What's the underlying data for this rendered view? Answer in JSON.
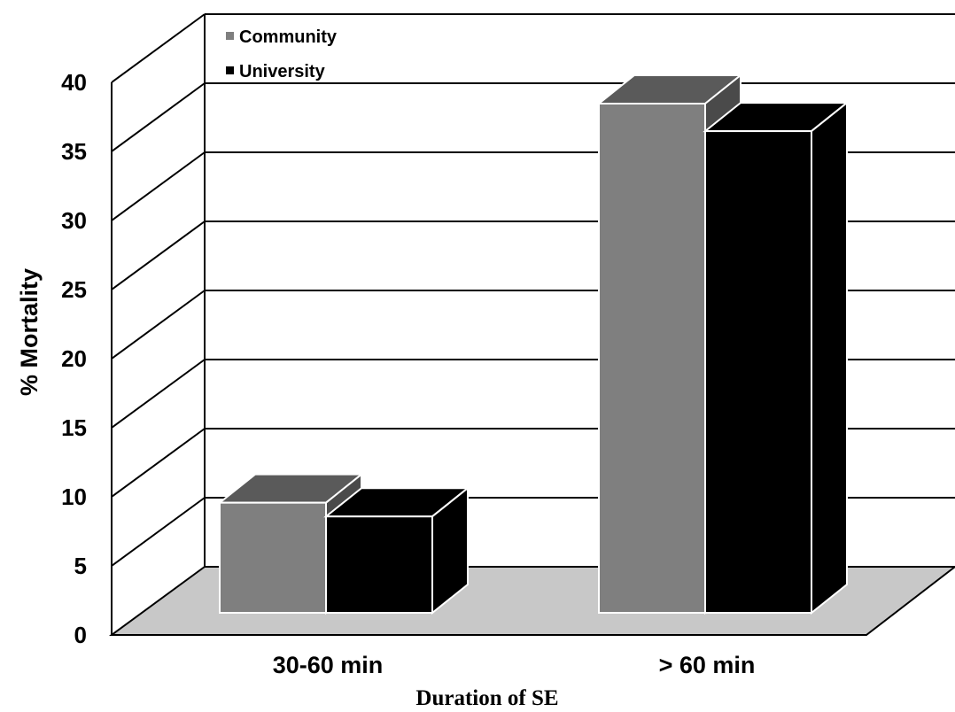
{
  "chart_data": {
    "type": "bar",
    "title": "",
    "xlabel": "Duration of SE",
    "ylabel": "% Mortality",
    "categories": [
      "30-60 min",
      "> 60 min"
    ],
    "series": [
      {
        "name": "Community",
        "values": [
          8,
          37
        ]
      },
      {
        "name": "University",
        "values": [
          7,
          35
        ]
      }
    ],
    "ylim": [
      0,
      40
    ],
    "yticks": [
      "0",
      "5",
      "10",
      "15",
      "20",
      "25",
      "30",
      "35",
      "40"
    ],
    "grid": true,
    "legend_position": "top-left",
    "colors": {
      "community_front": "#7f7f7f",
      "community_top": "#5a5a5a",
      "community_side": "#4a4a4a",
      "university": "#000000",
      "floor": "#c8c8c8"
    }
  }
}
